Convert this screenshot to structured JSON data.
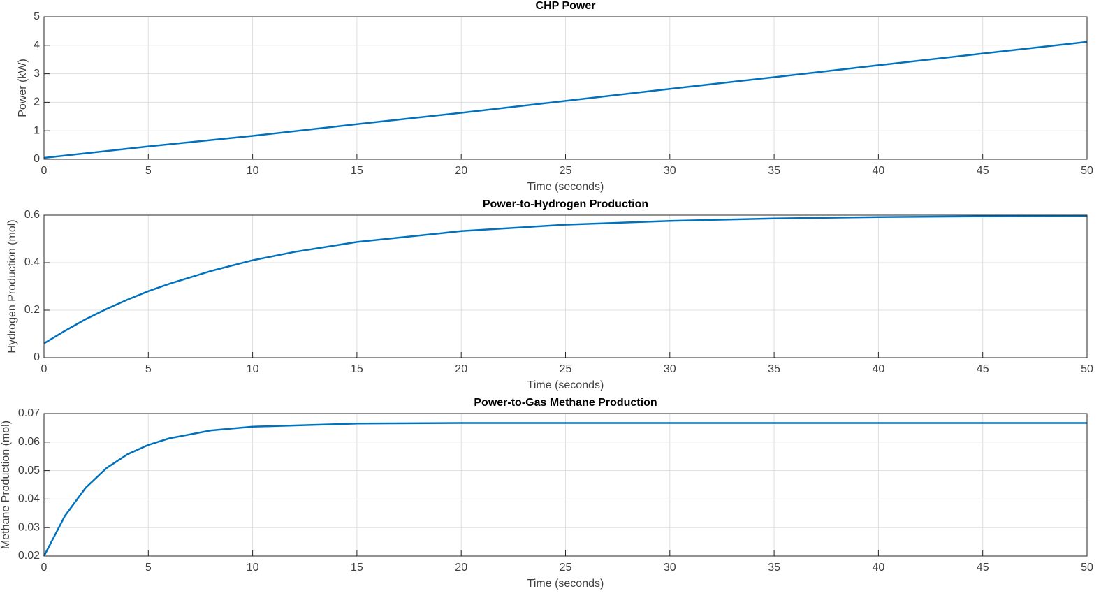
{
  "chart_data": [
    {
      "type": "line",
      "title": "CHP Power",
      "xlabel": "Time (seconds)",
      "ylabel": "Power (kW)",
      "x": [
        0,
        5,
        10,
        15,
        20,
        25,
        30,
        35,
        40,
        45,
        50
      ],
      "values": [
        0.05,
        0.45,
        0.82,
        1.23,
        1.63,
        2.05,
        2.47,
        2.88,
        3.3,
        3.71,
        4.12
      ],
      "color": "#0072bd",
      "xlim": [
        0,
        50
      ],
      "ylim": [
        0,
        5
      ],
      "xticks": [
        0,
        5,
        10,
        15,
        20,
        25,
        30,
        35,
        40,
        45,
        50
      ],
      "yticks": [
        0,
        1,
        2,
        3,
        4,
        5
      ],
      "grid": true
    },
    {
      "type": "line",
      "title": "Power-to-Hydrogen Production",
      "xlabel": "Time (seconds)",
      "ylabel": "Hydrogen Production (mol)",
      "x": [
        0,
        1,
        2,
        3,
        4,
        5,
        6,
        8,
        10,
        12,
        15,
        20,
        25,
        30,
        35,
        40,
        45,
        50
      ],
      "values": [
        0.06,
        0.113,
        0.162,
        0.205,
        0.244,
        0.28,
        0.311,
        0.365,
        0.41,
        0.445,
        0.487,
        0.533,
        0.56,
        0.576,
        0.586,
        0.592,
        0.595,
        0.597
      ],
      "color": "#0072bd",
      "xlim": [
        0,
        50
      ],
      "ylim": [
        0,
        0.6
      ],
      "xticks": [
        0,
        5,
        10,
        15,
        20,
        25,
        30,
        35,
        40,
        45,
        50
      ],
      "yticks": [
        0,
        0.2,
        0.4,
        0.6
      ],
      "grid": true
    },
    {
      "type": "line",
      "title": "Power-to-Gas Methane Production",
      "xlabel": "Time (seconds)",
      "ylabel": "Methane Production (mol)",
      "x": [
        0,
        1,
        2,
        3,
        4,
        5,
        6,
        8,
        10,
        15,
        20,
        30,
        40,
        50
      ],
      "values": [
        0.02,
        0.0341,
        0.044,
        0.0509,
        0.0557,
        0.059,
        0.0613,
        0.0641,
        0.0654,
        0.0665,
        0.0667,
        0.0667,
        0.0667,
        0.0667
      ],
      "color": "#0072bd",
      "xlim": [
        0,
        50
      ],
      "ylim": [
        0.02,
        0.07
      ],
      "xticks": [
        0,
        5,
        10,
        15,
        20,
        25,
        30,
        35,
        40,
        45,
        50
      ],
      "yticks": [
        0.02,
        0.03,
        0.04,
        0.05,
        0.06,
        0.07
      ],
      "grid": true
    }
  ]
}
